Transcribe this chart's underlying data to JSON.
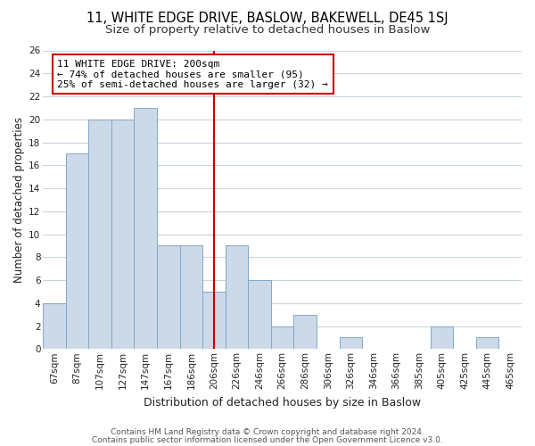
{
  "title": "11, WHITE EDGE DRIVE, BASLOW, BAKEWELL, DE45 1SJ",
  "subtitle": "Size of property relative to detached houses in Baslow",
  "xlabel": "Distribution of detached houses by size in Baslow",
  "ylabel": "Number of detached properties",
  "categories": [
    "67sqm",
    "87sqm",
    "107sqm",
    "127sqm",
    "147sqm",
    "167sqm",
    "186sqm",
    "206sqm",
    "226sqm",
    "246sqm",
    "266sqm",
    "286sqm",
    "306sqm",
    "326sqm",
    "346sqm",
    "366sqm",
    "385sqm",
    "405sqm",
    "425sqm",
    "445sqm",
    "465sqm"
  ],
  "values": [
    4,
    17,
    20,
    20,
    21,
    9,
    9,
    5,
    9,
    6,
    2,
    3,
    0,
    1,
    0,
    0,
    0,
    2,
    0,
    1,
    0
  ],
  "bar_color": "#ccd9e8",
  "bar_edge_color": "#7fa8c8",
  "vline_color": "#cc0000",
  "annotation_title": "11 WHITE EDGE DRIVE: 200sqm",
  "annotation_line1": "← 74% of detached houses are smaller (95)",
  "annotation_line2": "25% of semi-detached houses are larger (32) →",
  "annotation_box_color": "#ffffff",
  "annotation_box_edge": "#cc0000",
  "ylim": [
    0,
    26
  ],
  "yticks": [
    0,
    2,
    4,
    6,
    8,
    10,
    12,
    14,
    16,
    18,
    20,
    22,
    24,
    26
  ],
  "footer1": "Contains HM Land Registry data © Crown copyright and database right 2024.",
  "footer2": "Contains public sector information licensed under the Open Government Licence v3.0.",
  "bg_color": "#ffffff",
  "grid_color": "#c8d4dc",
  "title_fontsize": 10.5,
  "subtitle_fontsize": 9.5,
  "xlabel_fontsize": 9,
  "ylabel_fontsize": 8.5,
  "tick_fontsize": 7.5,
  "annotation_fontsize": 8,
  "footer_fontsize": 6.5
}
